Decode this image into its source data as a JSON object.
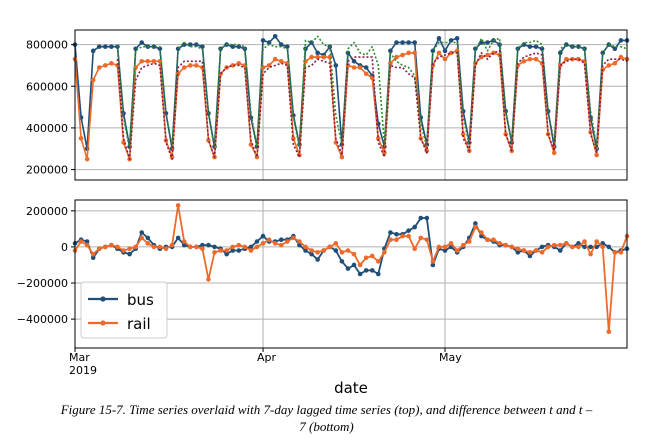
{
  "caption": {
    "line1": "Figure 15-7. Time series overlaid with 7-day lagged time series (top), and difference between t and t –",
    "line2": "7 (bottom)"
  },
  "colors": {
    "bus": "#1f4e79",
    "rail": "#ee6a2b",
    "bus_lag": "#2e8b2e",
    "rail_lag": "#8b1a4a",
    "grid": "#b0b0b0"
  },
  "chart_data": [
    {
      "type": "line",
      "xlabel": "",
      "ylabel": "",
      "x": [
        "2019-03-01",
        "2019-03-02",
        "2019-03-03",
        "2019-03-04",
        "2019-03-05",
        "2019-03-06",
        "2019-03-07",
        "2019-03-08",
        "2019-03-09",
        "2019-03-10",
        "2019-03-11",
        "2019-03-12",
        "2019-03-13",
        "2019-03-14",
        "2019-03-15",
        "2019-03-16",
        "2019-03-17",
        "2019-03-18",
        "2019-03-19",
        "2019-03-20",
        "2019-03-21",
        "2019-03-22",
        "2019-03-23",
        "2019-03-24",
        "2019-03-25",
        "2019-03-26",
        "2019-03-27",
        "2019-03-28",
        "2019-03-29",
        "2019-03-30",
        "2019-03-31",
        "2019-04-01",
        "2019-04-02",
        "2019-04-03",
        "2019-04-04",
        "2019-04-05",
        "2019-04-06",
        "2019-04-07",
        "2019-04-08",
        "2019-04-09",
        "2019-04-10",
        "2019-04-11",
        "2019-04-12",
        "2019-04-13",
        "2019-04-14",
        "2019-04-15",
        "2019-04-16",
        "2019-04-17",
        "2019-04-18",
        "2019-04-19",
        "2019-04-20",
        "2019-04-21",
        "2019-04-22",
        "2019-04-23",
        "2019-04-24",
        "2019-04-25",
        "2019-04-26",
        "2019-04-27",
        "2019-04-28",
        "2019-04-29",
        "2019-04-30",
        "2019-05-01",
        "2019-05-02",
        "2019-05-03",
        "2019-05-04",
        "2019-05-05",
        "2019-05-06",
        "2019-05-07",
        "2019-05-08",
        "2019-05-09",
        "2019-05-10",
        "2019-05-11",
        "2019-05-12",
        "2019-05-13",
        "2019-05-14",
        "2019-05-15",
        "2019-05-16",
        "2019-05-17",
        "2019-05-18",
        "2019-05-19",
        "2019-05-20",
        "2019-05-21",
        "2019-05-22",
        "2019-05-23",
        "2019-05-24",
        "2019-05-25",
        "2019-05-26",
        "2019-05-27",
        "2019-05-28",
        "2019-05-29",
        "2019-05-30",
        "2019-05-31"
      ],
      "ylim": [
        150000,
        870000
      ],
      "yticks": [
        200000,
        400000,
        600000,
        800000
      ],
      "ytick_labels": [
        "200000",
        "400000",
        "600000",
        "800000"
      ],
      "series": [
        {
          "key": "bus",
          "style": "solid-marker",
          "color": "#1f4e79",
          "values": [
            800000,
            450000,
            300000,
            770000,
            790000,
            790000,
            790000,
            790000,
            470000,
            310000,
            780000,
            810000,
            790000,
            790000,
            780000,
            470000,
            300000,
            780000,
            800000,
            800000,
            800000,
            790000,
            470000,
            310000,
            780000,
            800000,
            790000,
            790000,
            780000,
            450000,
            310000,
            820000,
            810000,
            840000,
            800000,
            790000,
            460000,
            320000,
            780000,
            810000,
            760000,
            750000,
            790000,
            700000,
            320000,
            760000,
            720000,
            700000,
            690000,
            650000,
            420000,
            310000,
            770000,
            810000,
            810000,
            810000,
            810000,
            450000,
            320000,
            770000,
            830000,
            770000,
            820000,
            830000,
            480000,
            330000,
            780000,
            810000,
            810000,
            820000,
            800000,
            480000,
            330000,
            780000,
            800000,
            790000,
            790000,
            780000,
            480000,
            310000,
            760000,
            800000,
            790000,
            790000,
            780000,
            450000,
            300000,
            760000,
            800000,
            780000,
            820000,
            820000
          ]
        },
        {
          "key": "rail",
          "style": "solid-marker",
          "color": "#ee6a2b",
          "values": [
            730000,
            350000,
            250000,
            630000,
            690000,
            700000,
            710000,
            700000,
            330000,
            250000,
            690000,
            720000,
            720000,
            720000,
            720000,
            340000,
            260000,
            660000,
            690000,
            700000,
            700000,
            690000,
            340000,
            260000,
            660000,
            690000,
            700000,
            710000,
            700000,
            320000,
            260000,
            690000,
            700000,
            730000,
            720000,
            710000,
            350000,
            270000,
            720000,
            740000,
            740000,
            740000,
            740000,
            330000,
            260000,
            700000,
            690000,
            690000,
            660000,
            640000,
            350000,
            280000,
            710000,
            740000,
            750000,
            760000,
            760000,
            350000,
            290000,
            700000,
            760000,
            730000,
            760000,
            770000,
            370000,
            290000,
            710000,
            740000,
            750000,
            760000,
            750000,
            370000,
            290000,
            700000,
            720000,
            730000,
            730000,
            710000,
            370000,
            280000,
            700000,
            730000,
            730000,
            730000,
            720000,
            380000,
            270000,
            680000,
            700000,
            710000,
            740000,
            730000
          ]
        },
        {
          "key": "bus_lag",
          "style": "dotted",
          "color": "#2e8b2e",
          "values": [
            null,
            null,
            null,
            null,
            null,
            null,
            null,
            800000,
            450000,
            300000,
            770000,
            790000,
            790000,
            790000,
            790000,
            470000,
            310000,
            780000,
            810000,
            790000,
            790000,
            780000,
            470000,
            300000,
            780000,
            800000,
            800000,
            800000,
            790000,
            470000,
            310000,
            780000,
            800000,
            790000,
            790000,
            780000,
            450000,
            310000,
            820000,
            810000,
            840000,
            800000,
            790000,
            460000,
            320000,
            780000,
            810000,
            760000,
            750000,
            790000,
            700000,
            320000,
            760000,
            720000,
            700000,
            690000,
            650000,
            420000,
            310000,
            770000,
            810000,
            810000,
            810000,
            810000,
            450000,
            320000,
            770000,
            830000,
            770000,
            820000,
            830000,
            480000,
            330000,
            780000,
            810000,
            810000,
            820000,
            800000,
            480000,
            330000,
            780000,
            800000,
            790000,
            790000,
            780000,
            480000,
            310000,
            760000,
            800000,
            790000,
            790000,
            780000
          ]
        },
        {
          "key": "rail_lag",
          "style": "dotted",
          "color": "#8b1a4a",
          "values": [
            null,
            null,
            null,
            null,
            null,
            null,
            null,
            730000,
            350000,
            250000,
            630000,
            690000,
            700000,
            710000,
            700000,
            330000,
            250000,
            690000,
            720000,
            720000,
            720000,
            720000,
            340000,
            260000,
            660000,
            690000,
            700000,
            700000,
            690000,
            340000,
            260000,
            660000,
            690000,
            700000,
            710000,
            700000,
            320000,
            260000,
            690000,
            700000,
            730000,
            720000,
            710000,
            350000,
            270000,
            720000,
            740000,
            740000,
            740000,
            740000,
            330000,
            260000,
            700000,
            690000,
            690000,
            660000,
            640000,
            350000,
            280000,
            710000,
            740000,
            750000,
            760000,
            760000,
            350000,
            290000,
            700000,
            760000,
            730000,
            760000,
            770000,
            370000,
            290000,
            710000,
            740000,
            750000,
            760000,
            750000,
            370000,
            290000,
            700000,
            720000,
            730000,
            730000,
            710000,
            370000,
            280000,
            700000,
            730000,
            730000,
            730000,
            720000
          ]
        }
      ],
      "grid": true
    },
    {
      "type": "line",
      "xlabel": "date",
      "ylabel": "",
      "x_start": "2019-03-01",
      "x_tick_labels": [
        {
          "date": "2019-03-01",
          "line1": "Mar",
          "line2": "2019"
        },
        {
          "date": "2019-04-01",
          "line1": "Apr",
          "line2": ""
        },
        {
          "date": "2019-05-01",
          "line1": "May",
          "line2": ""
        }
      ],
      "ylim": [
        -560000,
        260000
      ],
      "yticks": [
        -400000,
        -200000,
        0,
        200000
      ],
      "ytick_labels": [
        "−400000",
        "−200000",
        "0",
        "200000"
      ],
      "legend": {
        "placement": "lower-left",
        "entries": [
          "bus",
          "rail"
        ]
      },
      "series": [
        {
          "name": "bus",
          "color": "#1f4e79",
          "values": [
            20000,
            40000,
            30000,
            -60000,
            -10000,
            0,
            10000,
            -10000,
            -30000,
            -40000,
            -10000,
            80000,
            50000,
            10000,
            -10000,
            0,
            0,
            50000,
            10000,
            0,
            0,
            10000,
            10000,
            0,
            -10000,
            -40000,
            -20000,
            -20000,
            -10000,
            0,
            30000,
            60000,
            30000,
            30000,
            40000,
            40000,
            60000,
            10000,
            -20000,
            -40000,
            -70000,
            -20000,
            0,
            -20000,
            -80000,
            -120000,
            -100000,
            -150000,
            -130000,
            -130000,
            -150000,
            -10000,
            80000,
            70000,
            70000,
            90000,
            110000,
            160000,
            160000,
            -100000,
            -10000,
            -20000,
            0,
            -30000,
            0,
            50000,
            130000,
            60000,
            40000,
            30000,
            10000,
            10000,
            0,
            -30000,
            -20000,
            -50000,
            -20000,
            0,
            10000,
            0,
            -20000,
            20000,
            0,
            20000,
            0,
            0,
            0,
            20000,
            0,
            -30000,
            -20000,
            -10000
          ]
        },
        {
          "name": "rail",
          "color": "#ee6a2b",
          "values": [
            -20000,
            30000,
            10000,
            -40000,
            -10000,
            0,
            10000,
            0,
            -20000,
            -10000,
            0,
            50000,
            20000,
            0,
            0,
            -10000,
            10000,
            230000,
            30000,
            0,
            0,
            -10000,
            -180000,
            -30000,
            -20000,
            -20000,
            0,
            10000,
            0,
            -20000,
            0,
            20000,
            40000,
            20000,
            10000,
            30000,
            50000,
            30000,
            0,
            -20000,
            -30000,
            -20000,
            0,
            20000,
            -30000,
            -20000,
            -40000,
            -100000,
            -60000,
            -50000,
            -80000,
            -30000,
            40000,
            40000,
            60000,
            60000,
            -10000,
            50000,
            40000,
            -80000,
            0,
            0,
            20000,
            -20000,
            10000,
            30000,
            110000,
            80000,
            40000,
            40000,
            20000,
            10000,
            0,
            -10000,
            -20000,
            -30000,
            -20000,
            -30000,
            0,
            10000,
            10000,
            20000,
            0,
            0,
            30000,
            -40000,
            30000,
            0,
            -470000,
            -30000,
            -30000,
            60000
          ]
        }
      ],
      "grid": true
    }
  ]
}
